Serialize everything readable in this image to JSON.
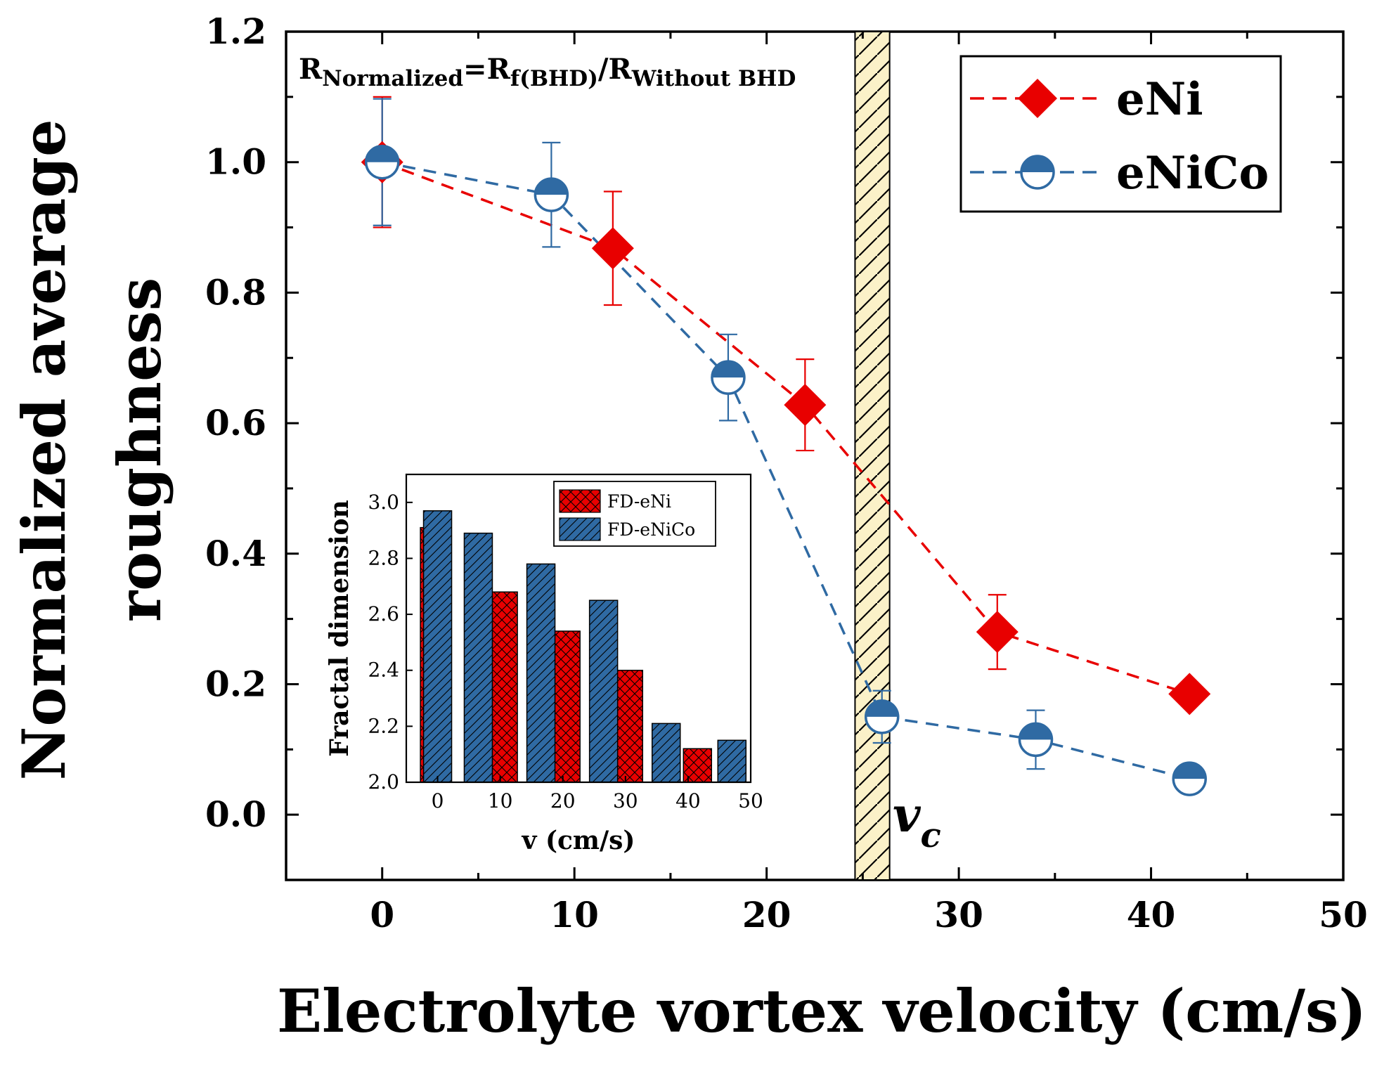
{
  "chart_data": [
    {
      "type": "line",
      "xlabel": "Electrolyte vortex velocity (cm/s)",
      "ylabel_line1": "Normalized average",
      "ylabel_line2": "roughness",
      "xlim": [
        -5,
        50
      ],
      "ylim": [
        -0.1,
        1.2
      ],
      "xticks": [
        "0",
        "10",
        "20",
        "30",
        "40",
        "50"
      ],
      "yticks": [
        "0.0",
        "0.2",
        "0.4",
        "0.6",
        "0.8",
        "1.0",
        "1.2"
      ],
      "formula": {
        "r1": "R",
        "s1": "Normalized",
        "eq": "=R",
        "s2": "f(BHD)",
        "slash": "/R",
        "s3": "Without BHD"
      },
      "critical_band": {
        "x_start": 24.6,
        "x_end": 26.4,
        "label": "v",
        "label_sub": "c"
      },
      "legend_position": "top-right",
      "series": [
        {
          "name": "eNi",
          "color": "#e80000",
          "marker": "diamond",
          "x": [
            0,
            12,
            22,
            32,
            42
          ],
          "y": [
            1.0,
            0.868,
            0.628,
            0.28,
            0.185
          ],
          "err": [
            0.1,
            0.087,
            0.07,
            0.057,
            0.0
          ]
        },
        {
          "name": "eNiCo",
          "color": "#2f6aa3",
          "marker": "half-filled circle",
          "x": [
            0,
            8.8,
            18,
            26,
            34,
            42
          ],
          "y": [
            1.0,
            0.95,
            0.67,
            0.15,
            0.115,
            0.055
          ],
          "err": [
            0.097,
            0.08,
            0.066,
            0.04,
            0.045,
            0.0
          ]
        }
      ]
    },
    {
      "type": "bar",
      "inset": true,
      "xlabel": "v (cm/s)",
      "ylabel": "Fractal dimension",
      "xlim": [
        -5,
        50
      ],
      "ylim": [
        2.0,
        3.1
      ],
      "xticks": [
        "0",
        "10",
        "20",
        "30",
        "40",
        "50"
      ],
      "yticks": [
        "2.0",
        "2.2",
        "2.4",
        "2.6",
        "2.8",
        "3.0"
      ],
      "legend_position": "top-right",
      "series": [
        {
          "name": "FD-eNi",
          "color": "#e80000",
          "pattern": "cross-hatch",
          "x": [
            -0.5,
            10.5,
            20.5,
            30.5,
            41.5
          ],
          "values": [
            2.91,
            2.68,
            2.54,
            2.4,
            2.12
          ]
        },
        {
          "name": "FD-eNiCo",
          "color": "#2f6aa3",
          "pattern": "diagonal-hatch",
          "x": [
            0,
            6.5,
            16.5,
            26.5,
            36.5,
            47
          ],
          "values": [
            2.97,
            2.89,
            2.78,
            2.65,
            2.21,
            2.15
          ]
        }
      ]
    }
  ]
}
